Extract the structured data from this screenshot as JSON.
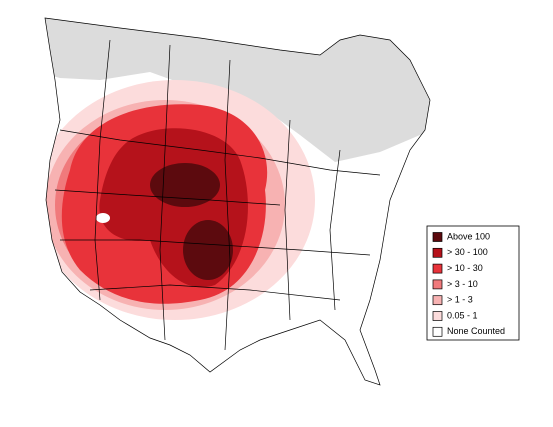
{
  "legend": {
    "items": [
      {
        "label": "Above 100",
        "color": "#5c0a0e"
      },
      {
        "label": "> 30 - 100",
        "color": "#b5121b"
      },
      {
        "label": "> 10 - 30",
        "color": "#e8333a"
      },
      {
        "label": "> 3 - 10",
        "color": "#f07a7c"
      },
      {
        "label": "> 1 - 3",
        "color": "#f7b2b2"
      },
      {
        "label": "0.05 - 1",
        "color": "#fcdcdc"
      },
      {
        "label": "None Counted",
        "color": "#ffffff"
      }
    ]
  }
}
